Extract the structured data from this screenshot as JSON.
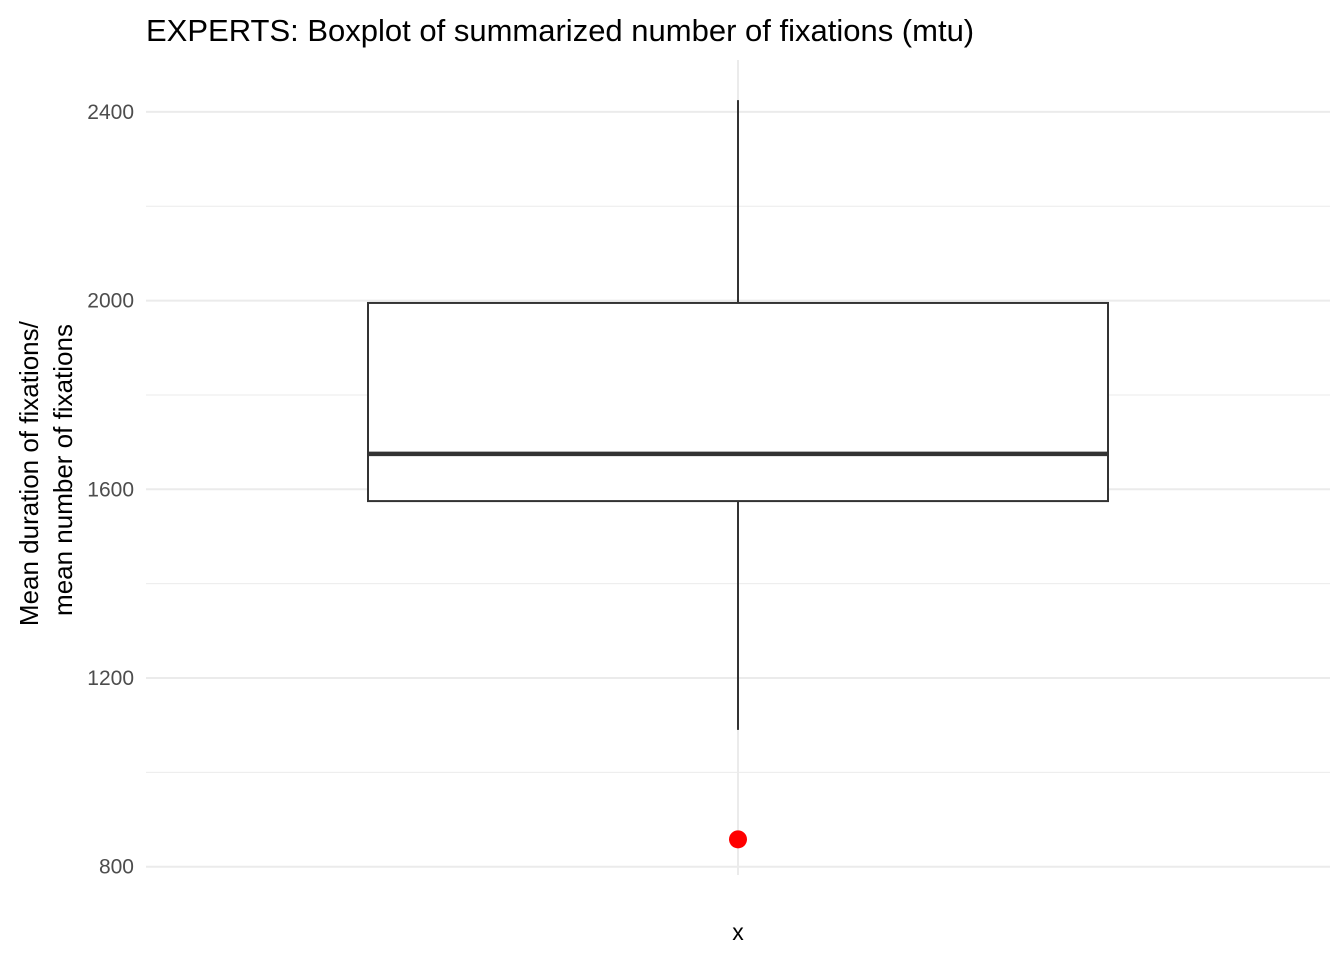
{
  "chart_data": {
    "type": "boxplot",
    "title": "EXPERTS: Boxplot of summarized number of fixations (mtu)",
    "xlabel": "x",
    "ylabel_lines": [
      "Mean duration of fixations/",
      "mean number of fixations"
    ],
    "categories": [
      "x"
    ],
    "y_ticks": [
      800,
      1200,
      1600,
      2000,
      2400
    ],
    "y_tick_labels": [
      "800",
      "1200",
      "1600",
      "2000",
      "2400"
    ],
    "y_minor_ticks": [
      1000,
      1400,
      1800,
      2200
    ],
    "ylim": [
      740,
      2510
    ],
    "grid": true,
    "legend": "none",
    "boxes": [
      {
        "category": "x",
        "whisker_low": 1090,
        "q1": 1575,
        "median": 1675,
        "q3": 1995,
        "whisker_high": 2425
      }
    ],
    "outliers": [
      {
        "category": "x",
        "value": 858
      }
    ],
    "colors": {
      "outlier": "#ff0000",
      "box_stroke": "#333333",
      "grid": "#ebebeb"
    }
  }
}
